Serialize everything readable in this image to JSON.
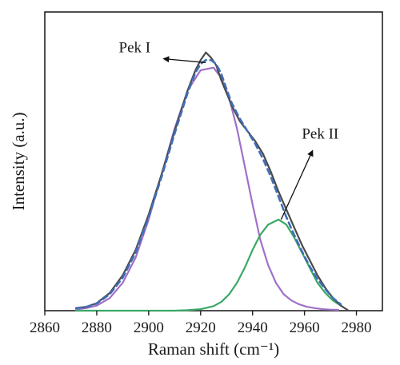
{
  "chart_data": {
    "type": "line",
    "xlabel": "Raman shift (cm⁻¹)",
    "ylabel": "Intensity (a.u.)",
    "xlim": [
      2860,
      2990
    ],
    "ylim": [
      0,
      1.18
    ],
    "xticks": [
      2860,
      2880,
      2900,
      2920,
      2940,
      2960,
      2980
    ],
    "x_tick_labels": [
      "2860",
      "2880",
      "2900",
      "2920",
      "2940",
      "2960",
      "2980"
    ],
    "grid": false,
    "legend": "none",
    "series": [
      {
        "role": "measured",
        "color": "#4a4a4a",
        "style": "solid",
        "x": [
          2872,
          2876,
          2880,
          2885,
          2890,
          2895,
          2900,
          2905,
          2910,
          2915,
          2918,
          2920,
          2922,
          2924,
          2926,
          2928,
          2930,
          2932,
          2935,
          2938,
          2941,
          2944,
          2947,
          2950,
          2953,
          2956,
          2959,
          2962,
          2965,
          2968,
          2971,
          2974,
          2977
        ],
        "y": [
          0.01,
          0.015,
          0.03,
          0.07,
          0.14,
          0.24,
          0.38,
          0.54,
          0.71,
          0.87,
          0.95,
          0.99,
          1.02,
          1.0,
          0.97,
          0.91,
          0.86,
          0.81,
          0.75,
          0.71,
          0.67,
          0.62,
          0.55,
          0.47,
          0.4,
          0.33,
          0.26,
          0.2,
          0.14,
          0.09,
          0.05,
          0.02,
          0.0
        ]
      },
      {
        "role": "fit-sum",
        "color": "#3f6fb5",
        "style": "dashed",
        "x": [
          2872,
          2876,
          2880,
          2885,
          2890,
          2895,
          2900,
          2905,
          2910,
          2915,
          2918,
          2920,
          2922,
          2924,
          2926,
          2928,
          2930,
          2932,
          2935,
          2938,
          2941,
          2944,
          2947,
          2950,
          2953,
          2956,
          2959,
          2962,
          2965,
          2968,
          2971,
          2974
        ],
        "y": [
          0.01,
          0.015,
          0.028,
          0.065,
          0.13,
          0.23,
          0.37,
          0.53,
          0.7,
          0.86,
          0.94,
          0.975,
          0.99,
          0.99,
          0.975,
          0.935,
          0.875,
          0.82,
          0.76,
          0.71,
          0.66,
          0.6,
          0.53,
          0.45,
          0.37,
          0.3,
          0.235,
          0.175,
          0.125,
          0.085,
          0.05,
          0.025
        ]
      },
      {
        "name": "Pek I",
        "color": "#a070c8",
        "style": "solid",
        "x": [
          2872,
          2876,
          2880,
          2885,
          2890,
          2895,
          2900,
          2905,
          2910,
          2915,
          2920,
          2925,
          2928,
          2931,
          2934,
          2937,
          2940,
          2943,
          2946,
          2949,
          2952,
          2955,
          2958,
          2961,
          2964,
          2967,
          2970,
          2973
        ],
        "y": [
          0.005,
          0.01,
          0.02,
          0.05,
          0.11,
          0.21,
          0.36,
          0.54,
          0.72,
          0.87,
          0.95,
          0.96,
          0.92,
          0.84,
          0.72,
          0.57,
          0.42,
          0.28,
          0.18,
          0.11,
          0.065,
          0.04,
          0.025,
          0.015,
          0.01,
          0.006,
          0.004,
          0.003
        ]
      },
      {
        "name": "Pek II",
        "color": "#3aa866",
        "style": "solid",
        "x": [
          2872,
          2880,
          2890,
          2900,
          2910,
          2915,
          2920,
          2925,
          2928,
          2931,
          2934,
          2937,
          2940,
          2943,
          2946,
          2950,
          2953,
          2956,
          2959,
          2962,
          2965,
          2968,
          2971,
          2974
        ],
        "y": [
          0.0,
          0.0,
          0.0,
          0.0,
          0.0,
          0.002,
          0.006,
          0.018,
          0.035,
          0.065,
          0.11,
          0.17,
          0.24,
          0.3,
          0.34,
          0.36,
          0.34,
          0.29,
          0.23,
          0.17,
          0.11,
          0.07,
          0.04,
          0.02
        ]
      }
    ],
    "annotations": [
      {
        "text": "Pek I",
        "target_series": "Pek I"
      },
      {
        "text": "Pek II",
        "target_series": "Pek II"
      }
    ]
  }
}
